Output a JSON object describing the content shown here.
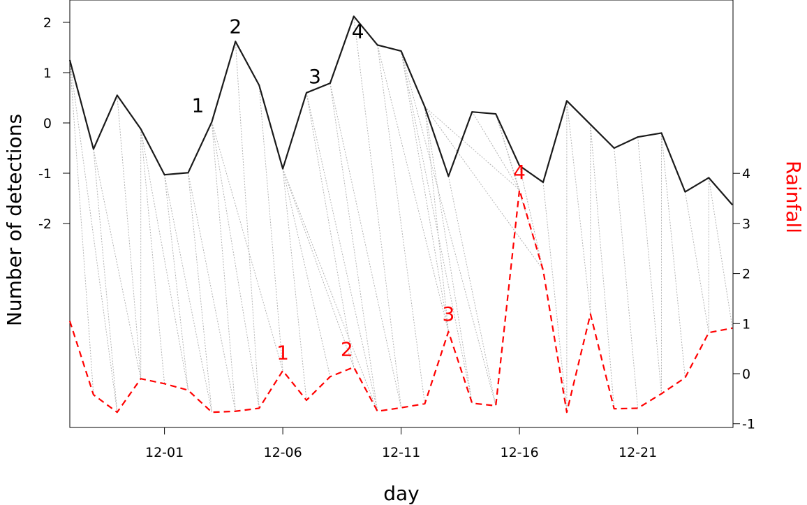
{
  "chart_data": {
    "type": "line",
    "xlabel": "day",
    "ylabel_left": "Number of detections",
    "ylabel_right": "Rainfall",
    "x_tick_labels": [
      "12-01",
      "12-06",
      "12-11",
      "12-16",
      "12-21"
    ],
    "x_tick_days": [
      4,
      9,
      14,
      19,
      24
    ],
    "x_range": [
      0,
      28
    ],
    "y_left_ticks": [
      2,
      1,
      0,
      -1,
      -2
    ],
    "y_left_tick_labels": [
      "2",
      "1",
      "0",
      "-1",
      "-2"
    ],
    "y_right_ticks": [
      4,
      3,
      2,
      1,
      0,
      -1
    ],
    "y_right_tick_labels": [
      "4",
      "3",
      "2",
      "1",
      "0",
      "-1"
    ],
    "series": [
      {
        "axis": "left",
        "color": "#1a1a1a",
        "style": "solid",
        "values": [
          1.25,
          -0.52,
          0.55,
          -0.12,
          -1.03,
          -0.99,
          0.02,
          1.62,
          0.75,
          -0.91,
          0.6,
          0.79,
          2.12,
          1.55,
          1.43,
          0.32,
          -1.06,
          0.22,
          0.18,
          -0.85,
          -1.18,
          0.44,
          -0.03,
          -0.5,
          -0.28,
          -0.2,
          -1.37,
          -1.09,
          -1.63
        ]
      },
      {
        "axis": "right",
        "color": "#ff0000",
        "style": "dashed",
        "values": [
          1.05,
          -0.42,
          -0.77,
          -0.1,
          -0.2,
          -0.33,
          -0.77,
          -0.75,
          -0.69,
          0.06,
          -0.53,
          -0.06,
          0.13,
          -0.75,
          -0.68,
          -0.6,
          0.84,
          -0.59,
          -0.64,
          3.67,
          2.07,
          -0.77,
          1.19,
          -0.7,
          -0.69,
          -0.4,
          -0.08,
          0.82,
          0.91
        ]
      }
    ],
    "connectors": [
      [
        0,
        1
      ],
      [
        0,
        2
      ],
      [
        1,
        2
      ],
      [
        1,
        3
      ],
      [
        2,
        3
      ],
      [
        3,
        3
      ],
      [
        3,
        4
      ],
      [
        3,
        5
      ],
      [
        4,
        5
      ],
      [
        4,
        6
      ],
      [
        5,
        6
      ],
      [
        5,
        7
      ],
      [
        6,
        7
      ],
      [
        6,
        8
      ],
      [
        6,
        9
      ],
      [
        7,
        8
      ],
      [
        8,
        9
      ],
      [
        9,
        10
      ],
      [
        9,
        11
      ],
      [
        9,
        12
      ],
      [
        9,
        13
      ],
      [
        10,
        12
      ],
      [
        10,
        13
      ],
      [
        11,
        13
      ],
      [
        11,
        14
      ],
      [
        12,
        14
      ],
      [
        13,
        15
      ],
      [
        13,
        16
      ],
      [
        14,
        16
      ],
      [
        14,
        17
      ],
      [
        14,
        18
      ],
      [
        15,
        16
      ],
      [
        15,
        17
      ],
      [
        15,
        19
      ],
      [
        15,
        20
      ],
      [
        16,
        18
      ],
      [
        17,
        19
      ],
      [
        18,
        19
      ],
      [
        18,
        20
      ],
      [
        19,
        20
      ],
      [
        20,
        21
      ],
      [
        21,
        21
      ],
      [
        21,
        22
      ],
      [
        22,
        22
      ],
      [
        22,
        23
      ],
      [
        23,
        24
      ],
      [
        24,
        25
      ],
      [
        25,
        25
      ],
      [
        25,
        26
      ],
      [
        26,
        27
      ],
      [
        27,
        27
      ],
      [
        27,
        28
      ]
    ],
    "annotations_left": [
      {
        "label": "1",
        "index": 6
      },
      {
        "label": "2",
        "index": 7
      },
      {
        "label": "3",
        "index": 10
      },
      {
        "label": "4",
        "index": 13
      }
    ],
    "annotations_right": [
      {
        "label": "1",
        "index": 9
      },
      {
        "label": "2",
        "index": 12
      },
      {
        "label": "3",
        "index": 16
      },
      {
        "label": "4",
        "index": 19
      }
    ],
    "grid": false,
    "legend": "none"
  }
}
